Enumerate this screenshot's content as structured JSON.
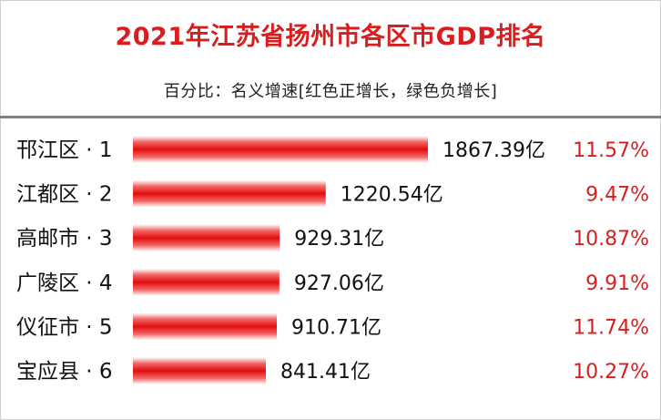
{
  "title": "2021年江苏省扬州市各区市GDP排名",
  "subtitle": "百分比：名义增速[红色正增长，绿色负增长]",
  "colors": {
    "title": "#d81e1e",
    "bar": "#e30d0d",
    "positive_growth": "#d81e1e",
    "negative_growth": "#1f9a3a"
  },
  "chart_data": {
    "type": "bar",
    "orientation": "horizontal",
    "title": "2021年江苏省扬州市各区市GDP排名",
    "subtitle": "百分比：名义增速[红色正增长，绿色负增长]",
    "categories": [
      "邗江区 · 1",
      "江都区 · 2",
      "高邮市 · 3",
      "广陵区 · 4",
      "仪征市 · 5",
      "宝应县 · 6"
    ],
    "values": [
      1867.39,
      1220.54,
      929.31,
      927.06,
      910.71,
      841.41
    ],
    "value_labels": [
      "1867.39亿",
      "1220.54亿",
      "929.31亿",
      "927.06亿",
      "910.71亿",
      "841.41亿"
    ],
    "growth": [
      11.57,
      9.47,
      10.87,
      9.91,
      11.74,
      10.27
    ],
    "growth_labels": [
      "11.57%",
      "9.47%",
      "10.87%",
      "9.91%",
      "11.74%",
      "10.27%"
    ],
    "xlim": [
      0,
      1867.39
    ],
    "grid": false,
    "legend": "none"
  }
}
